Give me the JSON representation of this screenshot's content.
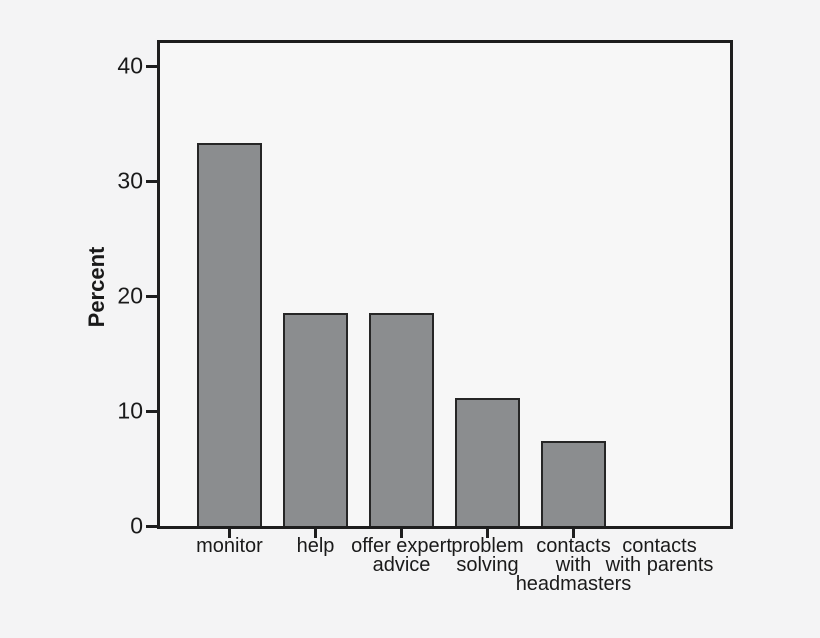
{
  "chart_data": {
    "type": "bar",
    "title": "",
    "xlabel": "",
    "ylabel": "Percent",
    "categories": [
      "monitor",
      "help",
      "offer expert advice",
      "problem solving",
      "contacts with headmasters",
      "contacts with parents"
    ],
    "category_label_lines": [
      [
        "monitor"
      ],
      [
        "help"
      ],
      [
        "offer expert",
        "advice"
      ],
      [
        "problem",
        "solving"
      ],
      [
        "contacts",
        "with",
        "headmasters"
      ],
      [
        "contacts",
        "with parents"
      ]
    ],
    "values": [
      33.3,
      18.5,
      18.5,
      11.1,
      7.4,
      0
    ],
    "yticks": [
      0,
      10,
      20,
      30,
      40
    ],
    "ylim": [
      0,
      42
    ],
    "grid": false,
    "legend_position": "none",
    "x_tick_present": [
      true,
      true,
      true,
      true,
      true,
      false
    ],
    "bar_fill_color": "#8b8d8f",
    "bar_border_color": "#262626",
    "axis_color": "#1e1e1e",
    "plot_background": "#f7f7f7",
    "page_background": "#f4f4f5"
  }
}
